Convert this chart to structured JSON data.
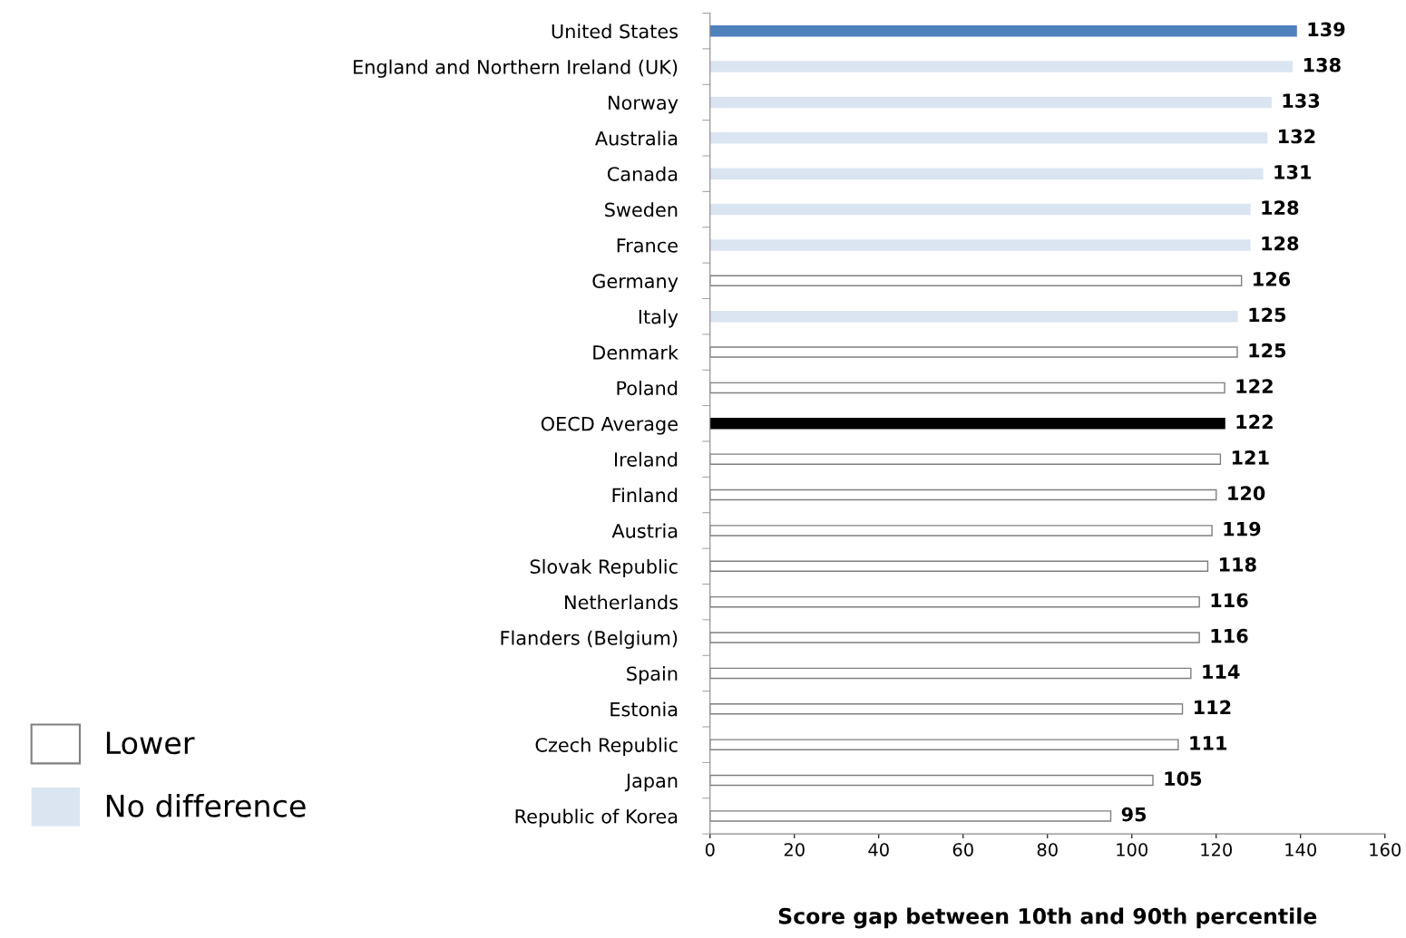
{
  "chart_data": {
    "type": "bar",
    "orientation": "horizontal",
    "categories": [
      "United States",
      "England and Northern Ireland (UK)",
      "Norway",
      "Australia",
      "Canada",
      "Sweden",
      "France",
      "Germany",
      "Italy",
      "Denmark",
      "Poland",
      "OECD Average",
      "Ireland",
      "Finland",
      "Austria",
      "Slovak Republic",
      "Netherlands",
      "Flanders (Belgium)",
      "Spain",
      "Estonia",
      "Czech Republic",
      "Japan",
      "Republic of Korea"
    ],
    "series": [
      {
        "color": "#4f81bd",
        "values": [
          139,
          null,
          null,
          null,
          null,
          null,
          null,
          null,
          null,
          null,
          null,
          null,
          null,
          null,
          null,
          null,
          null,
          null,
          null,
          null,
          null,
          null,
          null
        ]
      },
      {
        "name": "No difference",
        "color": "#dbe5f1",
        "values": [
          null,
          138,
          133,
          132,
          131,
          128,
          128,
          null,
          125,
          null,
          null,
          null,
          null,
          null,
          null,
          null,
          null,
          null,
          null,
          null,
          null,
          null,
          null
        ]
      },
      {
        "color": "#000000",
        "values": [
          null,
          null,
          null,
          null,
          null,
          null,
          null,
          null,
          null,
          null,
          null,
          122,
          null,
          null,
          null,
          null,
          null,
          null,
          null,
          null,
          null,
          null,
          null
        ]
      },
      {
        "name": "Lower",
        "color": "#ffffff",
        "values": [
          null,
          null,
          null,
          null,
          null,
          null,
          null,
          126,
          null,
          125,
          122,
          null,
          121,
          120,
          119,
          118,
          116,
          116,
          114,
          112,
          111,
          105,
          95
        ]
      }
    ],
    "xlim": [
      0,
      160
    ],
    "xticks": [
      0,
      20,
      40,
      60,
      80,
      100,
      120,
      140,
      160
    ],
    "xlabel": "Score gap between 10th and 90th percentile",
    "data_labels": true,
    "grid": false,
    "legend": "bottom left"
  }
}
